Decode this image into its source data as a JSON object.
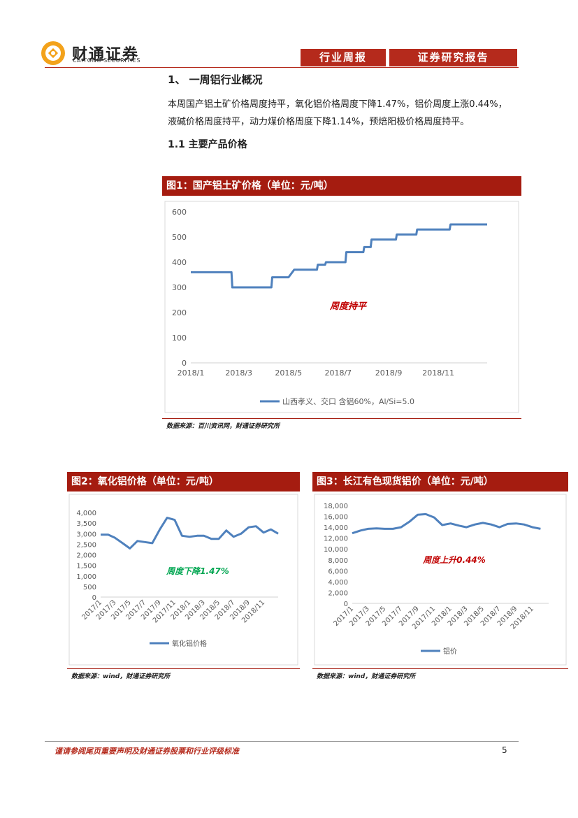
{
  "header": {
    "brand_cn": "财通证券",
    "brand_en": "CAITONG SECURITIES",
    "tab1": "行业周报",
    "tab2": "证券研究报告",
    "logo_icon": "caitong-coin-logo-icon",
    "accent": "#b52a1c"
  },
  "section": {
    "title": "1、 一周铝行业概况",
    "para_line1": "本周国产铝土矿价格周度持平，氧化铝价格周度下降1.47%，铝价周度上涨0.44%，",
    "para_line2": "液碱价格周度持平，动力煤价格周度下降1.14%，预焙阳极价格周度持平。",
    "subtitle": "1.1  主要产品价格"
  },
  "fig1": {
    "title": "图1：国产铝土矿价格（单位：元/吨）",
    "source": "数据来源：百川资讯网，财通证券研究所"
  },
  "fig2": {
    "title": "图2：氧化铝价格（单位：元/吨）",
    "source": "数据来源：wind，财通证券研究所"
  },
  "fig3": {
    "title": "图3：长江有色现货铝价（单位：元/吨）",
    "source": "数据来源：wind，财通证券研究所"
  },
  "chart_data": [
    {
      "type": "line",
      "yticks": [
        "0",
        "100",
        "200",
        "300",
        "400",
        "500",
        "600"
      ],
      "xticks": [
        "2018/1",
        "2018/3",
        "2018/5",
        "2018/7",
        "2018/9",
        "2018/11"
      ],
      "ylim": [
        0,
        600
      ],
      "series": [
        {
          "name": "山西孝义、交口 含铝60%，Al/Si=5.0",
          "color": "#4f81bd",
          "points": [
            [
              "2018/1/1",
              360
            ],
            [
              "2018/2/20",
              360
            ],
            [
              "2018/2/21",
              300
            ],
            [
              "2018/4/10",
              300
            ],
            [
              "2018/4/11",
              340
            ],
            [
              "2018/5/1",
              340
            ],
            [
              "2018/5/8",
              370
            ],
            [
              "2018/6/5",
              370
            ],
            [
              "2018/6/6",
              390
            ],
            [
              "2018/6/15",
              390
            ],
            [
              "2018/6/16",
              400
            ],
            [
              "2018/7/10",
              400
            ],
            [
              "2018/7/11",
              440
            ],
            [
              "2018/8/1",
              440
            ],
            [
              "2018/8/2",
              460
            ],
            [
              "2018/8/10",
              460
            ],
            [
              "2018/8/11",
              490
            ],
            [
              "2018/9/10",
              490
            ],
            [
              "2018/9/11",
              510
            ],
            [
              "2018/10/5",
              510
            ],
            [
              "2018/10/6",
              530
            ],
            [
              "2018/11/15",
              530
            ],
            [
              "2018/11/16",
              550
            ],
            [
              "2018/12/31",
              550
            ]
          ]
        }
      ],
      "annotation": "周度持平",
      "annotation_color": "#c00000",
      "legend": "bottom",
      "grid": false
    },
    {
      "type": "line",
      "yticks": [
        "0",
        "500",
        "1,000",
        "1,500",
        "2,000",
        "2,500",
        "3,000",
        "3,500",
        "4,000"
      ],
      "xticks": [
        "2017/1",
        "2017/3",
        "2017/5",
        "2017/7",
        "2017/9",
        "2017/11",
        "2018/1",
        "2018/3",
        "2018/5",
        "2018/7",
        "2018/9",
        "2018/11"
      ],
      "ylim": [
        0,
        4000
      ],
      "series": [
        {
          "name": "氧化铝价格",
          "color": "#4f81bd",
          "points": [
            [
              "2017/1",
              2950
            ],
            [
              "2017/2",
              2950
            ],
            [
              "2017/3",
              2800
            ],
            [
              "2017/4",
              2550
            ],
            [
              "2017/5",
              2300
            ],
            [
              "2017/6",
              2650
            ],
            [
              "2017/7",
              2600
            ],
            [
              "2017/8",
              2550
            ],
            [
              "2017/9",
              3200
            ],
            [
              "2017/10",
              3750
            ],
            [
              "2017/11",
              3650
            ],
            [
              "2017/12",
              2900
            ],
            [
              "2018/1",
              2850
            ],
            [
              "2018/2",
              2900
            ],
            [
              "2018/3",
              2900
            ],
            [
              "2018/4",
              2750
            ],
            [
              "2018/5",
              2750
            ],
            [
              "2018/6",
              3150
            ],
            [
              "2018/7",
              2850
            ],
            [
              "2018/8",
              3000
            ],
            [
              "2018/9",
              3300
            ],
            [
              "2018/10",
              3350
            ],
            [
              "2018/11",
              3050
            ],
            [
              "2018/12",
              3200
            ],
            [
              "2018/12/31",
              3000
            ]
          ]
        }
      ],
      "annotation": "周度下降1.47%",
      "annotation_color": "#00a651",
      "legend": "bottom",
      "grid": false
    },
    {
      "type": "line",
      "yticks": [
        "0",
        "2,000",
        "4,000",
        "6,000",
        "8,000",
        "10,000",
        "12,000",
        "14,000",
        "16,000",
        "18,000"
      ],
      "xticks": [
        "2017/1",
        "2017/3",
        "2017/5",
        "2017/7",
        "2017/9",
        "2017/11",
        "2018/1",
        "2018/3",
        "2018/5",
        "2018/7",
        "2018/9",
        "2018/11"
      ],
      "ylim": [
        0,
        18000
      ],
      "series": [
        {
          "name": "铝价",
          "color": "#4f81bd",
          "points": [
            [
              "2017/1",
              12900
            ],
            [
              "2017/2",
              13400
            ],
            [
              "2017/3",
              13700
            ],
            [
              "2017/4",
              13800
            ],
            [
              "2017/5",
              13700
            ],
            [
              "2017/6",
              13700
            ],
            [
              "2017/7",
              14000
            ],
            [
              "2017/8",
              15000
            ],
            [
              "2017/9",
              16300
            ],
            [
              "2017/10",
              16400
            ],
            [
              "2017/11",
              15800
            ],
            [
              "2017/12",
              14400
            ],
            [
              "2018/1",
              14700
            ],
            [
              "2018/2",
              14300
            ],
            [
              "2018/3",
              14000
            ],
            [
              "2018/4",
              14500
            ],
            [
              "2018/5",
              14800
            ],
            [
              "2018/6",
              14500
            ],
            [
              "2018/7",
              14000
            ],
            [
              "2018/8",
              14600
            ],
            [
              "2018/9",
              14700
            ],
            [
              "2018/10",
              14500
            ],
            [
              "2018/11",
              14000
            ],
            [
              "2018/12",
              13700
            ]
          ]
        }
      ],
      "annotation": "周度上升0.44%",
      "annotation_color": "#c00000",
      "legend": "bottom",
      "grid": false
    }
  ],
  "footer": {
    "disclaimer": "谨请参阅尾页重要声明及财通证券股票和行业评级标准",
    "page": "5"
  }
}
